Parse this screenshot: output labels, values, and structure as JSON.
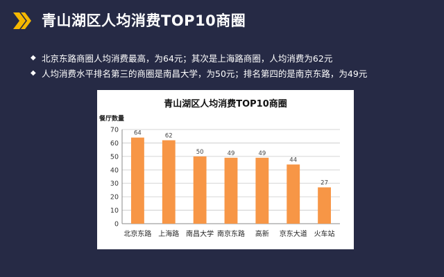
{
  "header": {
    "title": "青山湖区人均消费TOP10商圈",
    "icon": "double-chevron-right-icon",
    "icon_color": "#f5b800"
  },
  "bullets": [
    {
      "text": "北京东路商圈人均消费最高，为64元；其次是上海路商圈，人均消费为62元"
    },
    {
      "text": "人均消费水平排名第三的商圈是南昌大学，为50元；排名第四的是南京东路，为49元"
    }
  ],
  "chart_data": {
    "type": "bar",
    "title": "青山湖区人均消费TOP10商圈",
    "ylabel": "餐厅数量",
    "xlabel": "",
    "categories": [
      "北京东路",
      "上海路",
      "南昌大学",
      "南京东路",
      "高新",
      "京东大道",
      "火车站"
    ],
    "values": [
      64,
      62,
      50,
      49,
      49,
      44,
      27
    ],
    "ylim": [
      0,
      70
    ],
    "yticks": [
      0,
      10,
      20,
      30,
      40,
      50,
      60,
      70
    ],
    "grid": true,
    "bar_color": "#f79646"
  }
}
